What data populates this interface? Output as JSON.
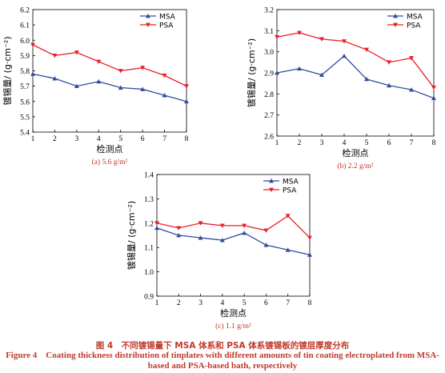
{
  "chart_data": [
    {
      "type": "line",
      "caption": "(a) 5.6 g/m²",
      "xlabel": "检测点",
      "ylabel": "镀锡量/ (g·cm⁻²)",
      "xlim": [
        1,
        8
      ],
      "ylim": [
        5.4,
        6.2
      ],
      "xticks": [
        "1",
        "2",
        "3",
        "4",
        "5",
        "6",
        "7",
        "8"
      ],
      "yticks": [
        "5.4",
        "5.5",
        "5.6",
        "5.7",
        "5.8",
        "5.9",
        "6.0",
        "6.1",
        "6.2"
      ],
      "x": [
        1,
        2,
        3,
        4,
        5,
        6,
        7,
        8
      ],
      "legend_position": "top-right",
      "series": [
        {
          "name": "MSA",
          "color": "#2e4e9e",
          "marker": "triangle-up",
          "values": [
            5.78,
            5.75,
            5.7,
            5.73,
            5.69,
            5.68,
            5.64,
            5.6
          ]
        },
        {
          "name": "PSA",
          "color": "#e8202a",
          "marker": "triangle-down",
          "values": [
            5.97,
            5.9,
            5.92,
            5.86,
            5.8,
            5.82,
            5.77,
            5.7
          ]
        }
      ]
    },
    {
      "type": "line",
      "caption": "(b) 2.2 g/m²",
      "xlabel": "检测点",
      "ylabel": "镀锡量/ (g·cm⁻²)",
      "xlim": [
        1,
        8
      ],
      "ylim": [
        2.6,
        3.2
      ],
      "xticks": [
        "1",
        "2",
        "3",
        "4",
        "5",
        "6",
        "7",
        "8"
      ],
      "yticks": [
        "2.6",
        "2.7",
        "2.8",
        "2.9",
        "3.0",
        "3.1",
        "3.2"
      ],
      "x": [
        1,
        2,
        3,
        4,
        5,
        6,
        7,
        8
      ],
      "legend_position": "top-right",
      "series": [
        {
          "name": "MSA",
          "color": "#2e4e9e",
          "marker": "triangle-up",
          "values": [
            2.9,
            2.92,
            2.89,
            2.98,
            2.87,
            2.84,
            2.82,
            2.78
          ]
        },
        {
          "name": "PSA",
          "color": "#e8202a",
          "marker": "triangle-down",
          "values": [
            3.07,
            3.09,
            3.06,
            3.05,
            3.01,
            2.95,
            2.97,
            2.83
          ]
        }
      ]
    },
    {
      "type": "line",
      "caption": "(c) 1.1 g/m²",
      "xlabel": "检测点",
      "ylabel": "镀锡量/ (g·cm⁻²)",
      "xlim": [
        1,
        8
      ],
      "ylim": [
        0.9,
        1.4
      ],
      "xticks": [
        "1",
        "2",
        "3",
        "4",
        "5",
        "6",
        "7",
        "8"
      ],
      "yticks": [
        "0.9",
        "1.0",
        "1.1",
        "1.2",
        "1.3",
        "1.4"
      ],
      "x": [
        1,
        2,
        3,
        4,
        5,
        6,
        7,
        8
      ],
      "legend_position": "top-right",
      "series": [
        {
          "name": "MSA",
          "color": "#2e4e9e",
          "marker": "triangle-up",
          "values": [
            1.18,
            1.15,
            1.14,
            1.13,
            1.16,
            1.11,
            1.09,
            1.07
          ]
        },
        {
          "name": "PSA",
          "color": "#e8202a",
          "marker": "triangle-down",
          "values": [
            1.2,
            1.18,
            1.2,
            1.19,
            1.19,
            1.17,
            1.23,
            1.14
          ]
        }
      ]
    }
  ],
  "figure_caption": {
    "zh": "图 4　不同镀锡量下 MSA 体系和 PSA 体系镀锡板的镀层厚度分布",
    "en": "Figure 4　Coating thickness distribution of tinplates with different amounts of tin coating electroplated from MSA-based and PSA-based bath, respectively"
  }
}
